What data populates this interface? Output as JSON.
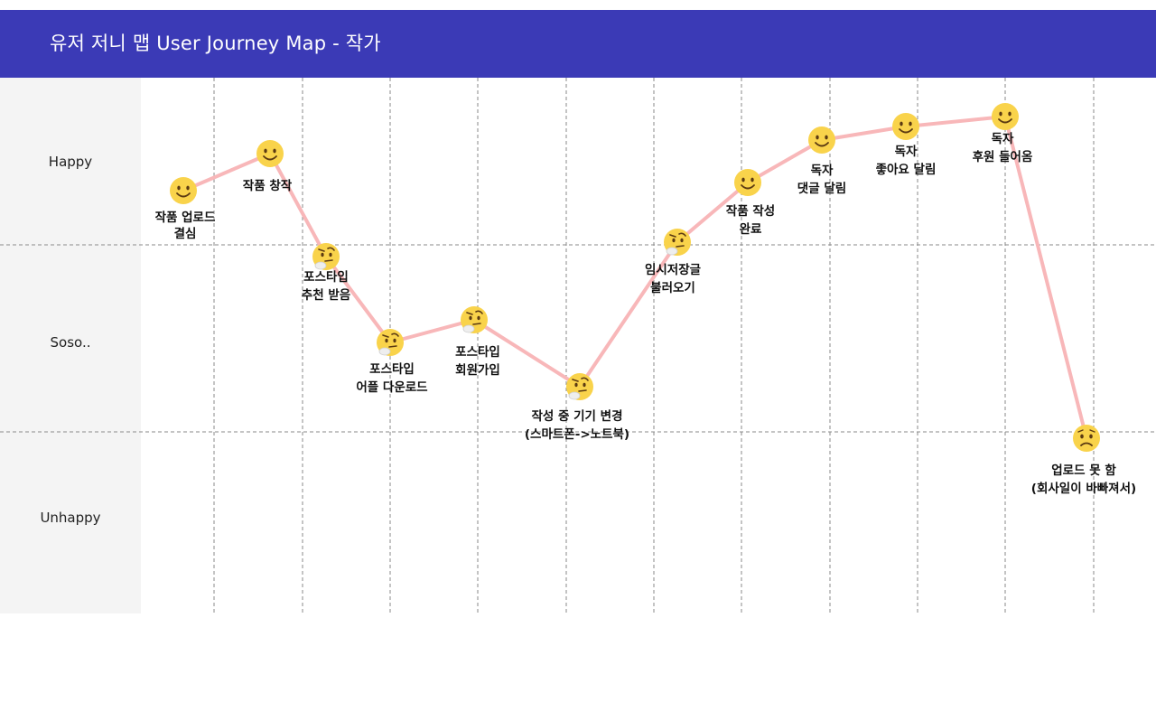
{
  "header": {
    "title": "유저 저니 맵  User Journey Map - 작가"
  },
  "rows": [
    "Happy",
    "Soso..",
    "Unhappy"
  ],
  "colors": {
    "header_bg": "#3b3ab6",
    "line": "#f8b7b9",
    "face": "#f9d34b",
    "grid": "#8a8a8a"
  },
  "chart_data": {
    "type": "line",
    "levels": [
      "Unhappy",
      "Soso..",
      "Happy"
    ],
    "stages": [
      {
        "label": [
          "작품 업로드",
          "결심"
        ],
        "emotion": "Happy",
        "icon": "smile-face-icon"
      },
      {
        "label": [
          "작품 창작"
        ],
        "emotion": "Happy",
        "icon": "smile-face-icon"
      },
      {
        "label": [
          "포스타입",
          "추천 받음"
        ],
        "emotion": "Soso..",
        "icon": "thinking-face-icon"
      },
      {
        "label": [
          "포스타입",
          "어플 다운로드"
        ],
        "emotion": "Soso..",
        "icon": "thinking-face-icon"
      },
      {
        "label": [
          "포스타입",
          "회원가입"
        ],
        "emotion": "Soso..",
        "icon": "thinking-face-icon"
      },
      {
        "label": [
          "작성 중 기기 변경",
          "(스마트폰->노트북)"
        ],
        "emotion": "Soso..",
        "icon": "thinking-face-icon"
      },
      {
        "label": [
          "임시저장글",
          "불러오기"
        ],
        "emotion": "Soso..",
        "icon": "thinking-face-icon"
      },
      {
        "label": [
          "작품 작성",
          "완료"
        ],
        "emotion": "Happy",
        "icon": "smile-face-icon"
      },
      {
        "label": [
          "독자",
          "댓글 달림"
        ],
        "emotion": "Happy",
        "icon": "smile-face-icon"
      },
      {
        "label": [
          "독자",
          "좋아요 달림"
        ],
        "emotion": "Happy",
        "icon": "smile-face-icon"
      },
      {
        "label": [
          "독자",
          "후원 들어옴"
        ],
        "emotion": "Happy",
        "icon": "smile-face-icon"
      },
      {
        "label": [
          "업로드 못 함",
          "(회사일이 바빠져서)"
        ],
        "emotion": "Unhappy",
        "icon": "worried-face-icon"
      }
    ]
  }
}
